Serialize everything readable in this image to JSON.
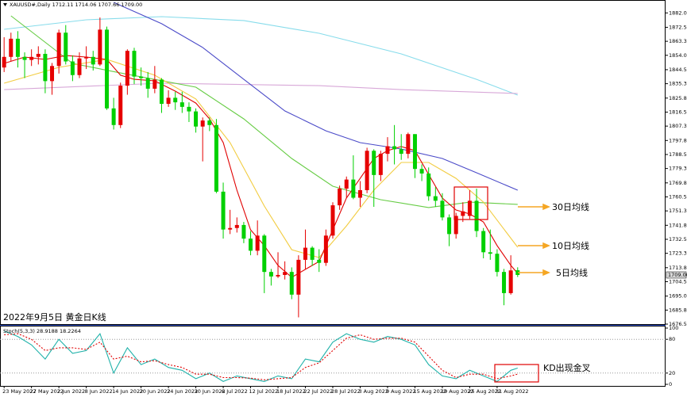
{
  "chart_data": [
    {
      "type": "candlestick",
      "title": "2022年9月5日 黄金日K线",
      "header": "XAUUSD#,Daily  1712.11 1714.06 1707.66 1709.00",
      "annotations": [
        "30日均线",
        "10日均线",
        "5日均线"
      ],
      "categories": [
        "23 May 2022",
        null,
        null,
        null,
        "27 May 2022",
        null,
        null,
        null,
        "2 Jun 2022",
        null,
        null,
        null,
        "8 Jun 2022",
        null,
        null,
        null,
        "14 Jun 2022",
        null,
        null,
        null,
        "20 Jun 2022",
        null,
        null,
        null,
        "24 Jun 2022",
        null,
        null,
        null,
        "30 Jun 2022",
        null,
        null,
        null,
        "6 Jul 2022",
        null,
        null,
        null,
        "12 Jul 2022",
        null,
        null,
        null,
        "18 Jul 2022",
        null,
        null,
        null,
        "22 Jul 2022",
        null,
        null,
        null,
        "28 Jul 2022",
        null,
        null,
        null,
        "3 Aug 2022",
        null,
        null,
        null,
        "9 Aug 2022",
        null,
        null,
        null,
        "15 Aug 2022",
        null,
        null,
        null,
        "19 Aug 2022",
        null,
        null,
        null,
        "25 Aug 2022",
        null,
        null,
        null,
        "31 Aug 2022",
        null,
        null,
        null
      ],
      "open": [
        1846,
        1853,
        1865,
        1853,
        1851,
        1853,
        1855,
        1837,
        1847,
        1869,
        1850,
        1841,
        1852,
        1853,
        1848,
        1871,
        1819,
        1808,
        1834,
        1857,
        1840,
        1839,
        1832,
        1838,
        1822,
        1826,
        1823,
        1820,
        1817,
        1807,
        1811,
        1808,
        1764,
        1739,
        1740,
        1742,
        1733,
        1725,
        1735,
        1711,
        1708,
        1709,
        1711,
        1696,
        1719,
        1727,
        1719,
        1717,
        1735,
        1755,
        1766,
        1772,
        1760,
        1765,
        1791,
        1775,
        1789,
        1794,
        1792,
        1789,
        1802,
        1779,
        1776,
        1761,
        1758,
        1747,
        1736,
        1748,
        1748,
        1758,
        1738,
        1724,
        1723,
        1711,
        1697,
        1712.11
      ],
      "high": [
        1866,
        1869,
        1870,
        1856,
        1858,
        1860,
        1858,
        1849,
        1871,
        1874,
        1854,
        1856,
        1860,
        1857,
        1879,
        1873,
        1826,
        1836,
        1858,
        1859,
        1846,
        1843,
        1847,
        1839,
        1831,
        1830,
        1830,
        1823,
        1819,
        1813,
        1813,
        1812,
        1770,
        1752,
        1747,
        1744,
        1738,
        1745,
        1736,
        1713,
        1724,
        1718,
        1714,
        1722,
        1739,
        1728,
        1726,
        1739,
        1757,
        1768,
        1774,
        1788,
        1771,
        1793,
        1792,
        1791,
        1800,
        1808,
        1802,
        1803,
        1802,
        1782,
        1780,
        1767,
        1763,
        1749,
        1750,
        1757,
        1765,
        1766,
        1740,
        1739,
        1726,
        1713,
        1722,
        1714.06
      ],
      "low": [
        1843,
        1850,
        1846,
        1839,
        1847,
        1848,
        1829,
        1828,
        1842,
        1848,
        1837,
        1839,
        1845,
        1844,
        1847,
        1818,
        1805,
        1806,
        1828,
        1835,
        1834,
        1826,
        1829,
        1816,
        1820,
        1818,
        1816,
        1810,
        1803,
        1784,
        1804,
        1763,
        1733,
        1736,
        1737,
        1730,
        1722,
        1722,
        1697,
        1702,
        1707,
        1706,
        1693,
        1681,
        1713,
        1715,
        1711,
        1715,
        1733,
        1752,
        1760,
        1759,
        1754,
        1763,
        1754,
        1771,
        1784,
        1782,
        1785,
        1786,
        1773,
        1771,
        1758,
        1754,
        1745,
        1728,
        1733,
        1744,
        1746,
        1734,
        1720,
        1719,
        1708,
        1689,
        1696,
        1707.66
      ],
      "close": [
        1853,
        1865,
        1853,
        1851,
        1853,
        1855,
        1837,
        1847,
        1869,
        1850,
        1841,
        1852,
        1853,
        1848,
        1871,
        1819,
        1808,
        1834,
        1857,
        1840,
        1839,
        1832,
        1838,
        1822,
        1826,
        1823,
        1820,
        1817,
        1807,
        1811,
        1808,
        1764,
        1739,
        1740,
        1742,
        1733,
        1725,
        1735,
        1711,
        1708,
        1709,
        1711,
        1696,
        1719,
        1727,
        1719,
        1717,
        1735,
        1755,
        1766,
        1772,
        1760,
        1765,
        1791,
        1775,
        1789,
        1794,
        1792,
        1789,
        1802,
        1779,
        1776,
        1761,
        1758,
        1747,
        1736,
        1748,
        1751,
        1758,
        1738,
        1724,
        1723,
        1711,
        1697,
        1712,
        1709.0
      ],
      "up_color": "#e60000",
      "down_color": "#00d000",
      "last_price": {
        "value": 1709.0,
        "label": "1709.00"
      },
      "xlim": [
        -0.6,
        96.6
      ],
      "ylim": [
        1676.55,
        1889
      ],
      "yticks": [
        1882.05,
        1872.55,
        {
          "value": 1863.3,
          "label": "1863.30"
        },
        1854.05,
        1844.55,
        {
          "value": 1835.3,
          "label": "1835.30"
        },
        {
          "value": 1825.8,
          "label": "1825.80"
        },
        1816.55,
        {
          "value": 1807.3,
          "label": "1807.30"
        },
        {
          "value": 1797.8,
          "label": "1797.80"
        },
        1788.55,
        {
          "value": 1779.3,
          "label": "1779.30"
        },
        {
          "value": 1769.8,
          "label": "1769.80"
        },
        1760.55,
        {
          "value": 1751.3,
          "label": "1751.30"
        },
        {
          "value": 1741.8,
          "label": "1741.80"
        },
        1732.55,
        {
          "value": 1723.3,
          "label": "1723.30"
        },
        {
          "value": 1713.8,
          "label": "1713.80"
        },
        1704.55,
        1695.05,
        {
          "value": 1685.8,
          "label": "1685.80"
        },
        1676.55
      ],
      "overlays": [
        {
          "color": "#87dceb",
          "x": [
            0,
            12,
            23,
            35,
            46,
            58,
            69,
            75
          ],
          "values": [
            1871.2,
            1877.5,
            1879.6,
            1877.0,
            1868.6,
            1855.0,
            1838.2,
            1827.8
          ]
        },
        {
          "color": "#d8a8d8",
          "x": [
            0,
            23,
            46,
            58,
            75
          ],
          "values": [
            1831.4,
            1835.6,
            1834.0,
            1831.4,
            1828.8
          ]
        },
        {
          "color": "#4a4ac8",
          "x": [
            16,
            23,
            29,
            35,
            41,
            47,
            52,
            58,
            64,
            69,
            75
          ],
          "values": [
            1889,
            1874.9,
            1859.2,
            1838.2,
            1817.3,
            1804.2,
            1796.4,
            1792.2,
            1785.9,
            1776.5,
            1765.0
          ]
        },
        {
          "color": "#66cc44",
          "x": [
            1,
            10,
            17,
            28,
            35,
            42,
            48,
            55,
            62,
            68,
            75
          ],
          "values": [
            1880.1,
            1848.7,
            1842.4,
            1833.0,
            1812.1,
            1785.9,
            1767.6,
            1758.7,
            1753.5,
            1757.1,
            1755.6
          ]
        },
        {
          "color": "#f2cc40",
          "x": [
            0,
            8,
            15,
            22,
            28,
            33,
            38,
            42,
            46,
            50,
            54,
            58,
            62,
            66,
            70,
            75
          ],
          "values": [
            1835.6,
            1846.1,
            1851.3,
            1840.9,
            1825.2,
            1796.4,
            1754.5,
            1725.7,
            1720.5,
            1741.4,
            1765.0,
            1783.3,
            1783.3,
            1772.8,
            1757.1,
            1727.3
          ]
        },
        {
          "color": "#e00000",
          "x": [
            0,
            3,
            6,
            9,
            12,
            15,
            17,
            19,
            22,
            25,
            28,
            30,
            32,
            34,
            36,
            38,
            40,
            42,
            44,
            46,
            48,
            50,
            52,
            54,
            56,
            58,
            60,
            62,
            64,
            66,
            68,
            70,
            72,
            74,
            75
          ],
          "values": [
            1848.7,
            1852.9,
            1851.3,
            1853.9,
            1852.9,
            1851.3,
            1840.9,
            1838.2,
            1837.2,
            1830.4,
            1822.5,
            1812.1,
            1796.4,
            1765.0,
            1738.8,
            1728.4,
            1715.3,
            1707.4,
            1712.7,
            1717.9,
            1738.8,
            1759.8,
            1772.8,
            1785.9,
            1791.1,
            1793.8,
            1791.1,
            1775.4,
            1759.8,
            1751.9,
            1749.3,
            1744.0,
            1728.4,
            1715.3,
            1710.0
          ]
        }
      ]
    },
    {
      "type": "line",
      "header": "Stoch(5,3,3) 28.9188 18.2264",
      "annotation": "KD出现金叉",
      "xlim": [
        -0.6,
        96.6
      ],
      "ylim": [
        0,
        100
      ],
      "yticks": [
        100,
        80,
        20,
        0
      ],
      "levels": [
        80,
        20
      ],
      "series": [
        {
          "color": "#20b2aa",
          "x": [
            0,
            2,
            4,
            6,
            8,
            10,
            12,
            14,
            16,
            18,
            20,
            22,
            24,
            26,
            28,
            30,
            32,
            34,
            36,
            38,
            40,
            42,
            44,
            46,
            48,
            50,
            52,
            54,
            56,
            58,
            60,
            62,
            64,
            66,
            68,
            70,
            72,
            74,
            75
          ],
          "values": [
            95,
            85,
            70,
            45,
            80,
            55,
            60,
            90,
            20,
            65,
            35,
            45,
            30,
            25,
            10,
            20,
            5,
            15,
            10,
            5,
            15,
            10,
            45,
            40,
            75,
            90,
            80,
            75,
            85,
            80,
            70,
            35,
            15,
            10,
            25,
            15,
            5,
            25,
            28.9188
          ]
        },
        {
          "color": "#e00000",
          "dash": true,
          "x": [
            0,
            2,
            4,
            6,
            8,
            10,
            12,
            14,
            16,
            18,
            20,
            22,
            24,
            26,
            28,
            30,
            32,
            34,
            36,
            38,
            40,
            42,
            44,
            46,
            48,
            50,
            52,
            54,
            56,
            58,
            60,
            62,
            64,
            66,
            68,
            70,
            72,
            74,
            75
          ],
          "values": [
            88,
            90,
            80,
            60,
            65,
            65,
            62,
            75,
            45,
            50,
            40,
            42,
            35,
            30,
            18,
            18,
            12,
            12,
            11,
            8,
            10,
            12,
            30,
            38,
            60,
            82,
            88,
            80,
            82,
            82,
            75,
            50,
            25,
            12,
            18,
            18,
            10,
            15,
            18.2264
          ]
        }
      ]
    }
  ]
}
